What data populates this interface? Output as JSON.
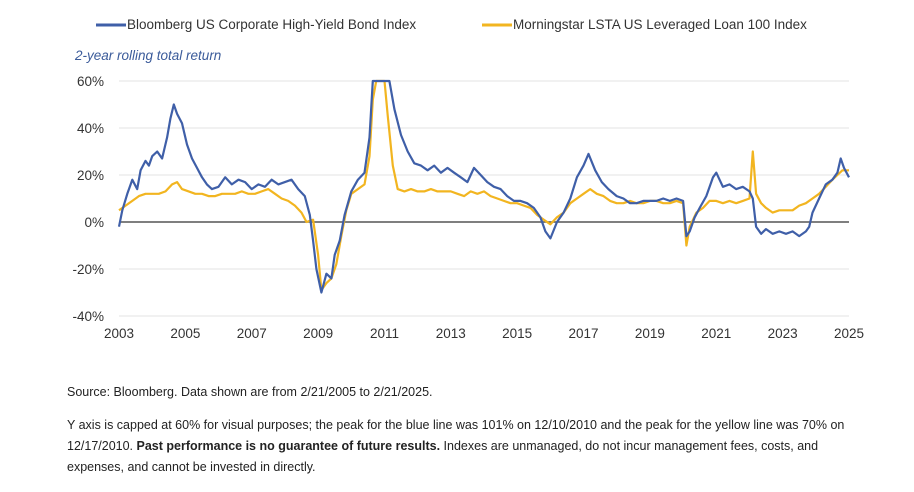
{
  "chart_data": {
    "type": "line",
    "subtitle": "2-year rolling total return",
    "xlabel": "",
    "ylabel": "",
    "x_ticks": [
      "2003",
      "2005",
      "2007",
      "2009",
      "2011",
      "2013",
      "2015",
      "2017",
      "2019",
      "2021",
      "2023",
      "2025"
    ],
    "y_ticks": [
      "60%",
      "40%",
      "20%",
      "0%",
      "-20%",
      "-40%"
    ],
    "xlim": [
      2003,
      2025
    ],
    "ylim": [
      -40,
      60
    ],
    "grid": "horizontal",
    "legend_position": "top",
    "series": [
      {
        "name": "Bloomberg US Corporate High-Yield Bond Index",
        "color": "#3f5fa8",
        "points": [
          [
            2003.0,
            -2
          ],
          [
            2003.1,
            5
          ],
          [
            2003.25,
            12
          ],
          [
            2003.4,
            18
          ],
          [
            2003.55,
            14
          ],
          [
            2003.65,
            22
          ],
          [
            2003.8,
            26
          ],
          [
            2003.9,
            24
          ],
          [
            2004.0,
            28
          ],
          [
            2004.15,
            30
          ],
          [
            2004.3,
            27
          ],
          [
            2004.45,
            36
          ],
          [
            2004.55,
            44
          ],
          [
            2004.65,
            50
          ],
          [
            2004.75,
            46
          ],
          [
            2004.9,
            42
          ],
          [
            2005.05,
            33
          ],
          [
            2005.2,
            27
          ],
          [
            2005.35,
            23
          ],
          [
            2005.5,
            19
          ],
          [
            2005.65,
            16
          ],
          [
            2005.8,
            14
          ],
          [
            2006.0,
            15
          ],
          [
            2006.2,
            19
          ],
          [
            2006.4,
            16
          ],
          [
            2006.6,
            18
          ],
          [
            2006.8,
            17
          ],
          [
            2007.0,
            14
          ],
          [
            2007.2,
            16
          ],
          [
            2007.4,
            15
          ],
          [
            2007.6,
            18
          ],
          [
            2007.8,
            16
          ],
          [
            2008.0,
            17
          ],
          [
            2008.2,
            18
          ],
          [
            2008.4,
            14
          ],
          [
            2008.6,
            11
          ],
          [
            2008.75,
            3
          ],
          [
            2008.85,
            -8
          ],
          [
            2008.95,
            -20
          ],
          [
            2009.1,
            -30
          ],
          [
            2009.25,
            -22
          ],
          [
            2009.4,
            -24
          ],
          [
            2009.5,
            -14
          ],
          [
            2009.65,
            -8
          ],
          [
            2009.8,
            3
          ],
          [
            2010.0,
            13
          ],
          [
            2010.2,
            18
          ],
          [
            2010.4,
            21
          ],
          [
            2010.55,
            36
          ],
          [
            2010.65,
            60
          ],
          [
            2010.75,
            60
          ],
          [
            2010.9,
            60
          ],
          [
            2011.0,
            60
          ],
          [
            2011.15,
            60
          ],
          [
            2011.3,
            48
          ],
          [
            2011.5,
            37
          ],
          [
            2011.7,
            30
          ],
          [
            2011.9,
            25
          ],
          [
            2012.1,
            24
          ],
          [
            2012.3,
            22
          ],
          [
            2012.5,
            24
          ],
          [
            2012.7,
            21
          ],
          [
            2012.9,
            23
          ],
          [
            2013.1,
            21
          ],
          [
            2013.3,
            19
          ],
          [
            2013.5,
            17
          ],
          [
            2013.7,
            23
          ],
          [
            2013.9,
            20
          ],
          [
            2014.1,
            17
          ],
          [
            2014.3,
            15
          ],
          [
            2014.5,
            14
          ],
          [
            2014.7,
            11
          ],
          [
            2014.9,
            9
          ],
          [
            2015.1,
            9
          ],
          [
            2015.3,
            8
          ],
          [
            2015.5,
            6
          ],
          [
            2015.7,
            2
          ],
          [
            2015.85,
            -4
          ],
          [
            2016.0,
            -7
          ],
          [
            2016.2,
            0
          ],
          [
            2016.4,
            4
          ],
          [
            2016.6,
            10
          ],
          [
            2016.8,
            19
          ],
          [
            2017.0,
            24
          ],
          [
            2017.15,
            29
          ],
          [
            2017.35,
            22
          ],
          [
            2017.55,
            17
          ],
          [
            2017.75,
            14
          ],
          [
            2018.0,
            11
          ],
          [
            2018.2,
            10
          ],
          [
            2018.4,
            8
          ],
          [
            2018.6,
            8
          ],
          [
            2018.8,
            9
          ],
          [
            2019.0,
            9
          ],
          [
            2019.2,
            9
          ],
          [
            2019.4,
            10
          ],
          [
            2019.6,
            9
          ],
          [
            2019.8,
            10
          ],
          [
            2020.0,
            9
          ],
          [
            2020.1,
            -6
          ],
          [
            2020.2,
            -4
          ],
          [
            2020.35,
            2
          ],
          [
            2020.5,
            6
          ],
          [
            2020.7,
            11
          ],
          [
            2020.9,
            19
          ],
          [
            2021.0,
            21
          ],
          [
            2021.2,
            15
          ],
          [
            2021.4,
            16
          ],
          [
            2021.6,
            14
          ],
          [
            2021.8,
            15
          ],
          [
            2022.0,
            13
          ],
          [
            2022.1,
            10
          ],
          [
            2022.2,
            -2
          ],
          [
            2022.35,
            -5
          ],
          [
            2022.5,
            -3
          ],
          [
            2022.7,
            -5
          ],
          [
            2022.9,
            -4
          ],
          [
            2023.1,
            -5
          ],
          [
            2023.3,
            -4
          ],
          [
            2023.5,
            -6
          ],
          [
            2023.7,
            -4
          ],
          [
            2023.8,
            -2
          ],
          [
            2023.9,
            4
          ],
          [
            2024.1,
            10
          ],
          [
            2024.3,
            16
          ],
          [
            2024.5,
            18
          ],
          [
            2024.65,
            21
          ],
          [
            2024.75,
            27
          ],
          [
            2024.85,
            23
          ],
          [
            2025.0,
            19
          ]
        ]
      },
      {
        "name": "Morningstar LSTA US Leveraged Loan 100 Index",
        "color": "#f2b520",
        "points": [
          [
            2003.0,
            5
          ],
          [
            2003.2,
            7
          ],
          [
            2003.4,
            9
          ],
          [
            2003.6,
            11
          ],
          [
            2003.8,
            12
          ],
          [
            2004.0,
            12
          ],
          [
            2004.2,
            12
          ],
          [
            2004.4,
            13
          ],
          [
            2004.6,
            16
          ],
          [
            2004.75,
            17
          ],
          [
            2004.9,
            14
          ],
          [
            2005.1,
            13
          ],
          [
            2005.3,
            12
          ],
          [
            2005.5,
            12
          ],
          [
            2005.7,
            11
          ],
          [
            2005.9,
            11
          ],
          [
            2006.1,
            12
          ],
          [
            2006.3,
            12
          ],
          [
            2006.5,
            12
          ],
          [
            2006.7,
            13
          ],
          [
            2006.9,
            12
          ],
          [
            2007.1,
            12
          ],
          [
            2007.3,
            13
          ],
          [
            2007.5,
            14
          ],
          [
            2007.7,
            12
          ],
          [
            2007.9,
            10
          ],
          [
            2008.1,
            9
          ],
          [
            2008.3,
            7
          ],
          [
            2008.5,
            4
          ],
          [
            2008.65,
            0
          ],
          [
            2008.85,
            1
          ],
          [
            2009.0,
            -14
          ],
          [
            2009.1,
            -29
          ],
          [
            2009.25,
            -26
          ],
          [
            2009.4,
            -24
          ],
          [
            2009.55,
            -18
          ],
          [
            2009.7,
            -6
          ],
          [
            2009.85,
            5
          ],
          [
            2010.0,
            12
          ],
          [
            2010.2,
            14
          ],
          [
            2010.4,
            16
          ],
          [
            2010.55,
            28
          ],
          [
            2010.65,
            52
          ],
          [
            2010.75,
            60
          ],
          [
            2010.9,
            60
          ],
          [
            2011.0,
            60
          ],
          [
            2011.1,
            45
          ],
          [
            2011.25,
            24
          ],
          [
            2011.4,
            14
          ],
          [
            2011.6,
            13
          ],
          [
            2011.8,
            14
          ],
          [
            2012.0,
            13
          ],
          [
            2012.2,
            13
          ],
          [
            2012.4,
            14
          ],
          [
            2012.6,
            13
          ],
          [
            2012.8,
            13
          ],
          [
            2013.0,
            13
          ],
          [
            2013.2,
            12
          ],
          [
            2013.4,
            11
          ],
          [
            2013.6,
            13
          ],
          [
            2013.8,
            12
          ],
          [
            2014.0,
            13
          ],
          [
            2014.2,
            11
          ],
          [
            2014.4,
            10
          ],
          [
            2014.6,
            9
          ],
          [
            2014.8,
            8
          ],
          [
            2015.0,
            8
          ],
          [
            2015.2,
            7
          ],
          [
            2015.4,
            6
          ],
          [
            2015.6,
            3
          ],
          [
            2015.8,
            1
          ],
          [
            2016.0,
            -1
          ],
          [
            2016.2,
            2
          ],
          [
            2016.4,
            4
          ],
          [
            2016.6,
            8
          ],
          [
            2016.8,
            10
          ],
          [
            2017.0,
            12
          ],
          [
            2017.2,
            14
          ],
          [
            2017.4,
            12
          ],
          [
            2017.6,
            11
          ],
          [
            2017.8,
            9
          ],
          [
            2018.0,
            8
          ],
          [
            2018.2,
            8
          ],
          [
            2018.4,
            9
          ],
          [
            2018.6,
            8
          ],
          [
            2018.8,
            8
          ],
          [
            2019.0,
            9
          ],
          [
            2019.2,
            9
          ],
          [
            2019.4,
            8
          ],
          [
            2019.6,
            8
          ],
          [
            2019.8,
            9
          ],
          [
            2020.0,
            8
          ],
          [
            2020.1,
            -10
          ],
          [
            2020.2,
            -2
          ],
          [
            2020.4,
            4
          ],
          [
            2020.6,
            6
          ],
          [
            2020.8,
            9
          ],
          [
            2021.0,
            9
          ],
          [
            2021.2,
            8
          ],
          [
            2021.4,
            9
          ],
          [
            2021.6,
            8
          ],
          [
            2021.8,
            9
          ],
          [
            2022.0,
            10
          ],
          [
            2022.1,
            30
          ],
          [
            2022.2,
            12
          ],
          [
            2022.35,
            8
          ],
          [
            2022.5,
            6
          ],
          [
            2022.7,
            4
          ],
          [
            2022.9,
            5
          ],
          [
            2023.1,
            5
          ],
          [
            2023.3,
            5
          ],
          [
            2023.5,
            7
          ],
          [
            2023.7,
            8
          ],
          [
            2023.9,
            10
          ],
          [
            2024.1,
            12
          ],
          [
            2024.3,
            15
          ],
          [
            2024.5,
            18
          ],
          [
            2024.65,
            20
          ],
          [
            2024.8,
            22
          ],
          [
            2025.0,
            22
          ]
        ]
      }
    ]
  },
  "notes": {
    "source": "Source: Bloomberg. Data shown are from 2/21/2005 to 2/21/2025.",
    "caption_pre": "Y axis is capped at 60% for visual purposes; the peak for the blue line was 101% on 12/10/2010 and the peak for the yellow line was 70% on 12/17/2010. ",
    "caption_bold": "Past performance is no guarantee of future results.",
    "caption_post": " Indexes are unmanaged, do not incur management fees, costs, and expenses, and cannot be invested in directly."
  }
}
